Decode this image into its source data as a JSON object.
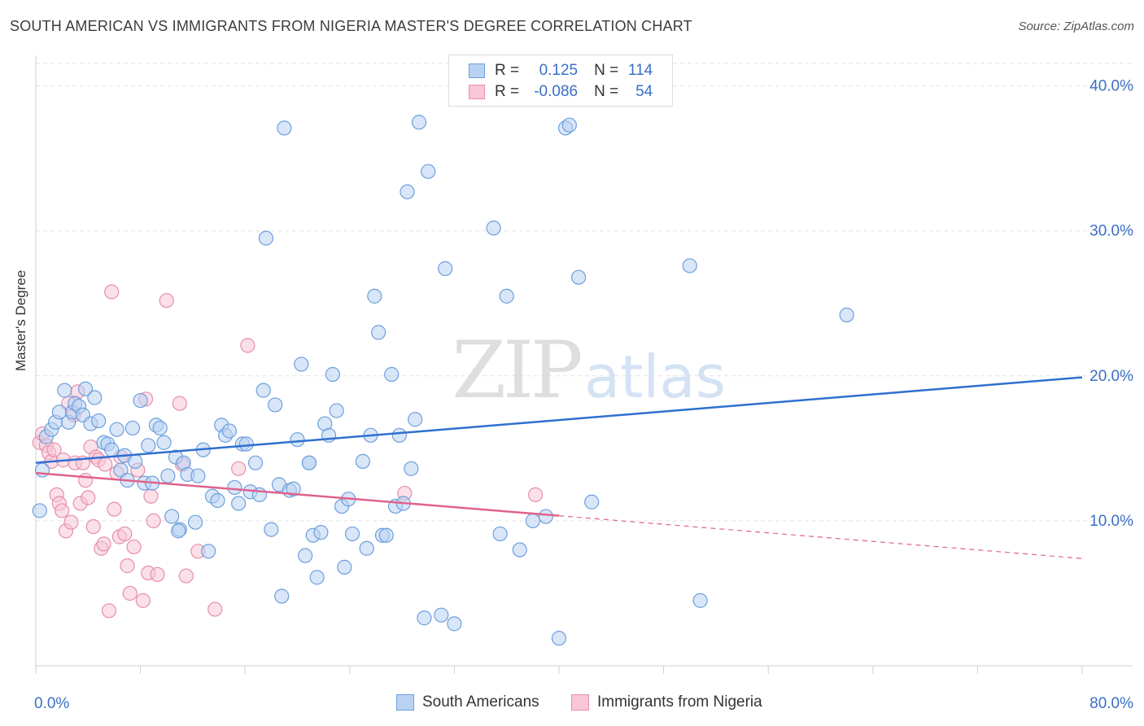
{
  "header": {
    "title": "SOUTH AMERICAN VS IMMIGRANTS FROM NIGERIA MASTER'S DEGREE CORRELATION CHART",
    "source": "Source: ZipAtlas.com"
  },
  "watermark": {
    "zip": "ZIP",
    "atlas": "atlas"
  },
  "stats": {
    "rows": [
      {
        "r_label": "R =",
        "r_value": "0.125",
        "n_label": "N =",
        "n_value": "114"
      },
      {
        "r_label": "R =",
        "r_value": "-0.086",
        "n_label": "N =",
        "n_value": "54"
      }
    ]
  },
  "legend": {
    "items": [
      {
        "label": "South Americans"
      },
      {
        "label": "Immigrants from Nigeria"
      }
    ]
  },
  "colors": {
    "blue_fill": "#b9d2f2",
    "blue_stroke": "#6d9fdc",
    "blue_line": "#2f6fd0",
    "pink_fill": "#f8c6d6",
    "pink_stroke": "#e58fab",
    "pink_line": "#e0628c",
    "axis_text": "#3a6fc6",
    "grid": "#e2e2e2"
  },
  "chart_data": {
    "type": "scatter",
    "title": "SOUTH AMERICAN VS IMMIGRANTS FROM NIGERIA MASTER'S DEGREE CORRELATION CHART",
    "xlabel": "",
    "ylabel": "Master's Degree",
    "xlim": [
      0,
      80
    ],
    "ylim": [
      0,
      42
    ],
    "x_tick_labels": [
      {
        "value": 0,
        "label": "0.0%"
      },
      {
        "value": 80,
        "label": "80.0%"
      }
    ],
    "y_tick_labels": [
      {
        "value": 10,
        "label": "10.0%"
      },
      {
        "value": 20,
        "label": "20.0%"
      },
      {
        "value": 30,
        "label": "30.0%"
      },
      {
        "value": 40,
        "label": "40.0%"
      }
    ],
    "grid": true,
    "legend_position": "bottom-center",
    "series": [
      {
        "name": "South Americans",
        "color": "#6d9fdc",
        "trend": {
          "x0": 0,
          "y0": 14.0,
          "x1": 80,
          "y1": 19.9,
          "dashed_from": null
        },
        "points": [
          [
            0.3,
            10.7
          ],
          [
            0.5,
            13.5
          ],
          [
            0.8,
            15.8
          ],
          [
            1.2,
            16.3
          ],
          [
            1.5,
            16.8
          ],
          [
            1.8,
            17.5
          ],
          [
            2.2,
            19.0
          ],
          [
            2.5,
            16.8
          ],
          [
            2.8,
            17.5
          ],
          [
            3.0,
            18.1
          ],
          [
            3.3,
            17.9
          ],
          [
            3.6,
            17.3
          ],
          [
            3.8,
            19.1
          ],
          [
            4.2,
            16.7
          ],
          [
            4.5,
            18.5
          ],
          [
            4.8,
            16.9
          ],
          [
            5.2,
            15.4
          ],
          [
            5.5,
            15.3
          ],
          [
            5.8,
            14.9
          ],
          [
            6.2,
            16.3
          ],
          [
            6.5,
            13.5
          ],
          [
            6.8,
            14.5
          ],
          [
            7.0,
            12.8
          ],
          [
            7.4,
            16.4
          ],
          [
            7.6,
            14.1
          ],
          [
            8.0,
            18.3
          ],
          [
            8.3,
            12.6
          ],
          [
            8.6,
            15.2
          ],
          [
            8.9,
            12.6
          ],
          [
            9.2,
            16.6
          ],
          [
            9.5,
            16.4
          ],
          [
            9.8,
            15.4
          ],
          [
            10.1,
            13.1
          ],
          [
            10.4,
            10.3
          ],
          [
            10.7,
            14.4
          ],
          [
            11.0,
            9.4
          ],
          [
            11.3,
            14.0
          ],
          [
            11.6,
            13.2
          ],
          [
            12.2,
            9.9
          ],
          [
            12.4,
            13.1
          ],
          [
            12.8,
            14.9
          ],
          [
            13.2,
            7.9
          ],
          [
            13.5,
            11.7
          ],
          [
            13.9,
            11.4
          ],
          [
            14.2,
            16.6
          ],
          [
            14.5,
            15.9
          ],
          [
            14.8,
            16.2
          ],
          [
            15.2,
            12.3
          ],
          [
            15.5,
            11.2
          ],
          [
            15.8,
            15.3
          ],
          [
            16.1,
            15.3
          ],
          [
            16.4,
            12.0
          ],
          [
            16.8,
            14.0
          ],
          [
            17.1,
            11.8
          ],
          [
            17.4,
            19.0
          ],
          [
            17.6,
            29.5
          ],
          [
            18.0,
            9.4
          ],
          [
            18.3,
            18.0
          ],
          [
            18.6,
            12.5
          ],
          [
            18.8,
            4.8
          ],
          [
            19.0,
            37.1
          ],
          [
            19.4,
            12.1
          ],
          [
            19.7,
            12.2
          ],
          [
            20.0,
            15.6
          ],
          [
            20.3,
            20.8
          ],
          [
            20.6,
            7.6
          ],
          [
            20.9,
            14.0
          ],
          [
            21.2,
            9.0
          ],
          [
            21.5,
            6.1
          ],
          [
            21.8,
            9.2
          ],
          [
            22.1,
            16.7
          ],
          [
            22.4,
            15.9
          ],
          [
            22.7,
            20.1
          ],
          [
            23.0,
            17.6
          ],
          [
            23.4,
            11.0
          ],
          [
            23.6,
            6.8
          ],
          [
            23.9,
            11.5
          ],
          [
            24.2,
            9.1
          ],
          [
            25.0,
            14.1
          ],
          [
            25.3,
            8.1
          ],
          [
            25.6,
            15.9
          ],
          [
            25.9,
            25.5
          ],
          [
            26.2,
            23.0
          ],
          [
            26.5,
            9.0
          ],
          [
            26.8,
            9.0
          ],
          [
            27.2,
            20.1
          ],
          [
            27.5,
            11.0
          ],
          [
            27.8,
            15.9
          ],
          [
            28.1,
            11.2
          ],
          [
            28.4,
            32.7
          ],
          [
            28.7,
            13.6
          ],
          [
            29.0,
            17.0
          ],
          [
            29.3,
            37.5
          ],
          [
            29.7,
            3.3
          ],
          [
            30.0,
            34.1
          ],
          [
            31.0,
            3.5
          ],
          [
            31.3,
            27.4
          ],
          [
            32.0,
            2.9
          ],
          [
            35.0,
            30.2
          ],
          [
            35.5,
            9.1
          ],
          [
            36.0,
            25.5
          ],
          [
            37.0,
            8.0
          ],
          [
            38.0,
            10.0
          ],
          [
            39.0,
            10.3
          ],
          [
            40.0,
            1.9
          ],
          [
            40.5,
            37.1
          ],
          [
            40.8,
            37.3
          ],
          [
            41.5,
            26.8
          ],
          [
            42.5,
            11.3
          ],
          [
            50.0,
            27.6
          ],
          [
            50.8,
            4.5
          ],
          [
            62.0,
            24.2
          ],
          [
            20.9,
            14.0
          ],
          [
            10.9,
            9.3
          ]
        ]
      },
      {
        "name": "Immigrants from Nigeria",
        "color": "#e58fab",
        "trend": {
          "x0": 0,
          "y0": 13.3,
          "x1": 80,
          "y1": 7.4,
          "dashed_from": 40
        },
        "points": [
          [
            0.3,
            15.4
          ],
          [
            0.5,
            16.0
          ],
          [
            0.8,
            15.2
          ],
          [
            1.0,
            14.7
          ],
          [
            1.2,
            14.1
          ],
          [
            1.4,
            14.9
          ],
          [
            1.6,
            11.8
          ],
          [
            1.8,
            11.2
          ],
          [
            2.0,
            10.7
          ],
          [
            2.1,
            14.2
          ],
          [
            2.3,
            9.3
          ],
          [
            2.5,
            18.1
          ],
          [
            2.7,
            9.9
          ],
          [
            2.9,
            17.3
          ],
          [
            3.0,
            14.0
          ],
          [
            3.2,
            18.9
          ],
          [
            3.4,
            11.2
          ],
          [
            3.6,
            14.0
          ],
          [
            3.8,
            12.8
          ],
          [
            4.0,
            11.6
          ],
          [
            4.2,
            15.1
          ],
          [
            4.4,
            9.6
          ],
          [
            4.6,
            14.4
          ],
          [
            4.8,
            14.2
          ],
          [
            5.0,
            8.1
          ],
          [
            5.2,
            8.4
          ],
          [
            5.3,
            13.9
          ],
          [
            5.6,
            3.8
          ],
          [
            5.8,
            25.8
          ],
          [
            6.0,
            10.8
          ],
          [
            6.2,
            13.3
          ],
          [
            6.4,
            8.9
          ],
          [
            6.5,
            14.4
          ],
          [
            6.8,
            9.1
          ],
          [
            7.0,
            6.9
          ],
          [
            7.2,
            5.0
          ],
          [
            7.5,
            8.2
          ],
          [
            7.8,
            13.5
          ],
          [
            8.2,
            4.5
          ],
          [
            8.4,
            18.4
          ],
          [
            8.6,
            6.4
          ],
          [
            8.8,
            11.7
          ],
          [
            9.0,
            10.0
          ],
          [
            9.3,
            6.3
          ],
          [
            10.0,
            25.2
          ],
          [
            11.0,
            18.1
          ],
          [
            11.2,
            13.9
          ],
          [
            11.5,
            6.2
          ],
          [
            12.4,
            7.9
          ],
          [
            13.7,
            3.9
          ],
          [
            15.5,
            13.6
          ],
          [
            16.2,
            22.1
          ],
          [
            28.2,
            11.9
          ],
          [
            38.2,
            11.8
          ]
        ]
      }
    ]
  }
}
